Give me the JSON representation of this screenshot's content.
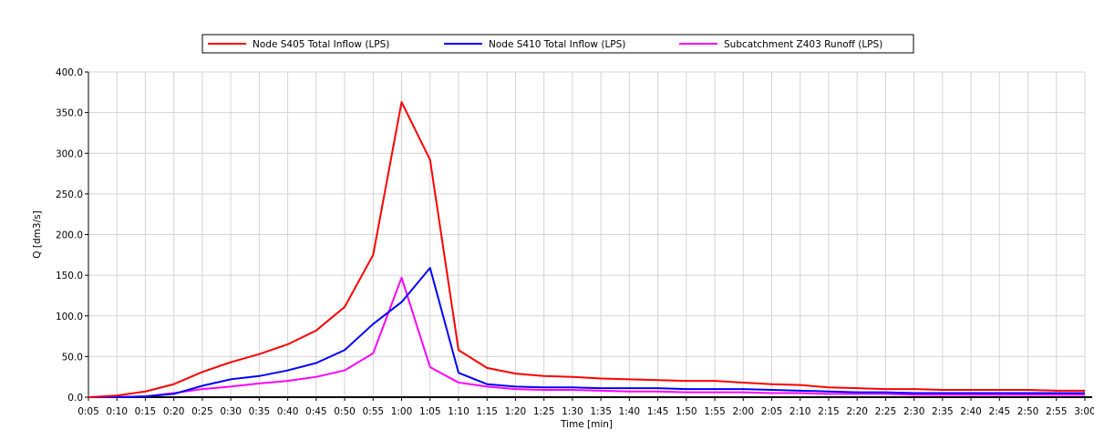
{
  "chart_data": {
    "type": "line",
    "title": "",
    "xlabel": "Time [min]",
    "ylabel": "Q [dm3/s]",
    "ylim": [
      0,
      400
    ],
    "yticks": [
      "0.0",
      "50.0",
      "100.0",
      "150.0",
      "200.0",
      "250.0",
      "300.0",
      "350.0",
      "400.0"
    ],
    "grid": true,
    "legend_position": "top",
    "x": [
      "0:05",
      "0:10",
      "0:15",
      "0:20",
      "0:25",
      "0:30",
      "0:35",
      "0:40",
      "0:45",
      "0:50",
      "0:55",
      "1:00",
      "1:05",
      "1:10",
      "1:15",
      "1:20",
      "1:25",
      "1:30",
      "1:35",
      "1:40",
      "1:45",
      "1:50",
      "1:55",
      "2:00",
      "2:05",
      "2:10",
      "2:15",
      "2:20",
      "2:25",
      "2:30",
      "2:35",
      "2:40",
      "2:45",
      "2:50",
      "2:55",
      "3:00"
    ],
    "series": [
      {
        "name": "Node S405 Total Inflow (LPS)",
        "color": "#ff0000",
        "values": [
          0,
          2,
          7,
          16,
          31,
          43,
          53,
          65,
          82,
          111,
          175,
          363,
          292,
          58,
          36,
          29,
          26,
          25,
          23,
          22,
          21,
          20,
          20,
          18,
          16,
          15,
          12,
          11,
          10,
          10,
          9,
          9,
          9,
          9,
          8,
          8
        ]
      },
      {
        "name": "Node S410 Total Inflow (LPS)",
        "color": "#0000ff",
        "values": [
          0,
          0,
          1,
          4,
          14,
          22,
          26,
          33,
          42,
          58,
          90,
          117,
          159,
          30,
          16,
          13,
          12,
          12,
          11,
          11,
          11,
          10,
          10,
          10,
          9,
          8,
          7,
          6,
          6,
          5,
          5,
          5,
          5,
          5,
          5,
          5
        ]
      },
      {
        "name": "Subcatchment Z403 Runoff (LPS)",
        "color": "#ff00ff",
        "values": [
          0,
          0,
          1,
          5,
          10,
          13,
          17,
          20,
          25,
          33,
          54,
          147,
          37,
          18,
          13,
          10,
          9,
          9,
          8,
          7,
          7,
          6,
          6,
          6,
          5,
          5,
          4,
          4,
          4,
          3,
          3,
          3,
          3,
          3,
          3,
          3
        ]
      }
    ]
  }
}
